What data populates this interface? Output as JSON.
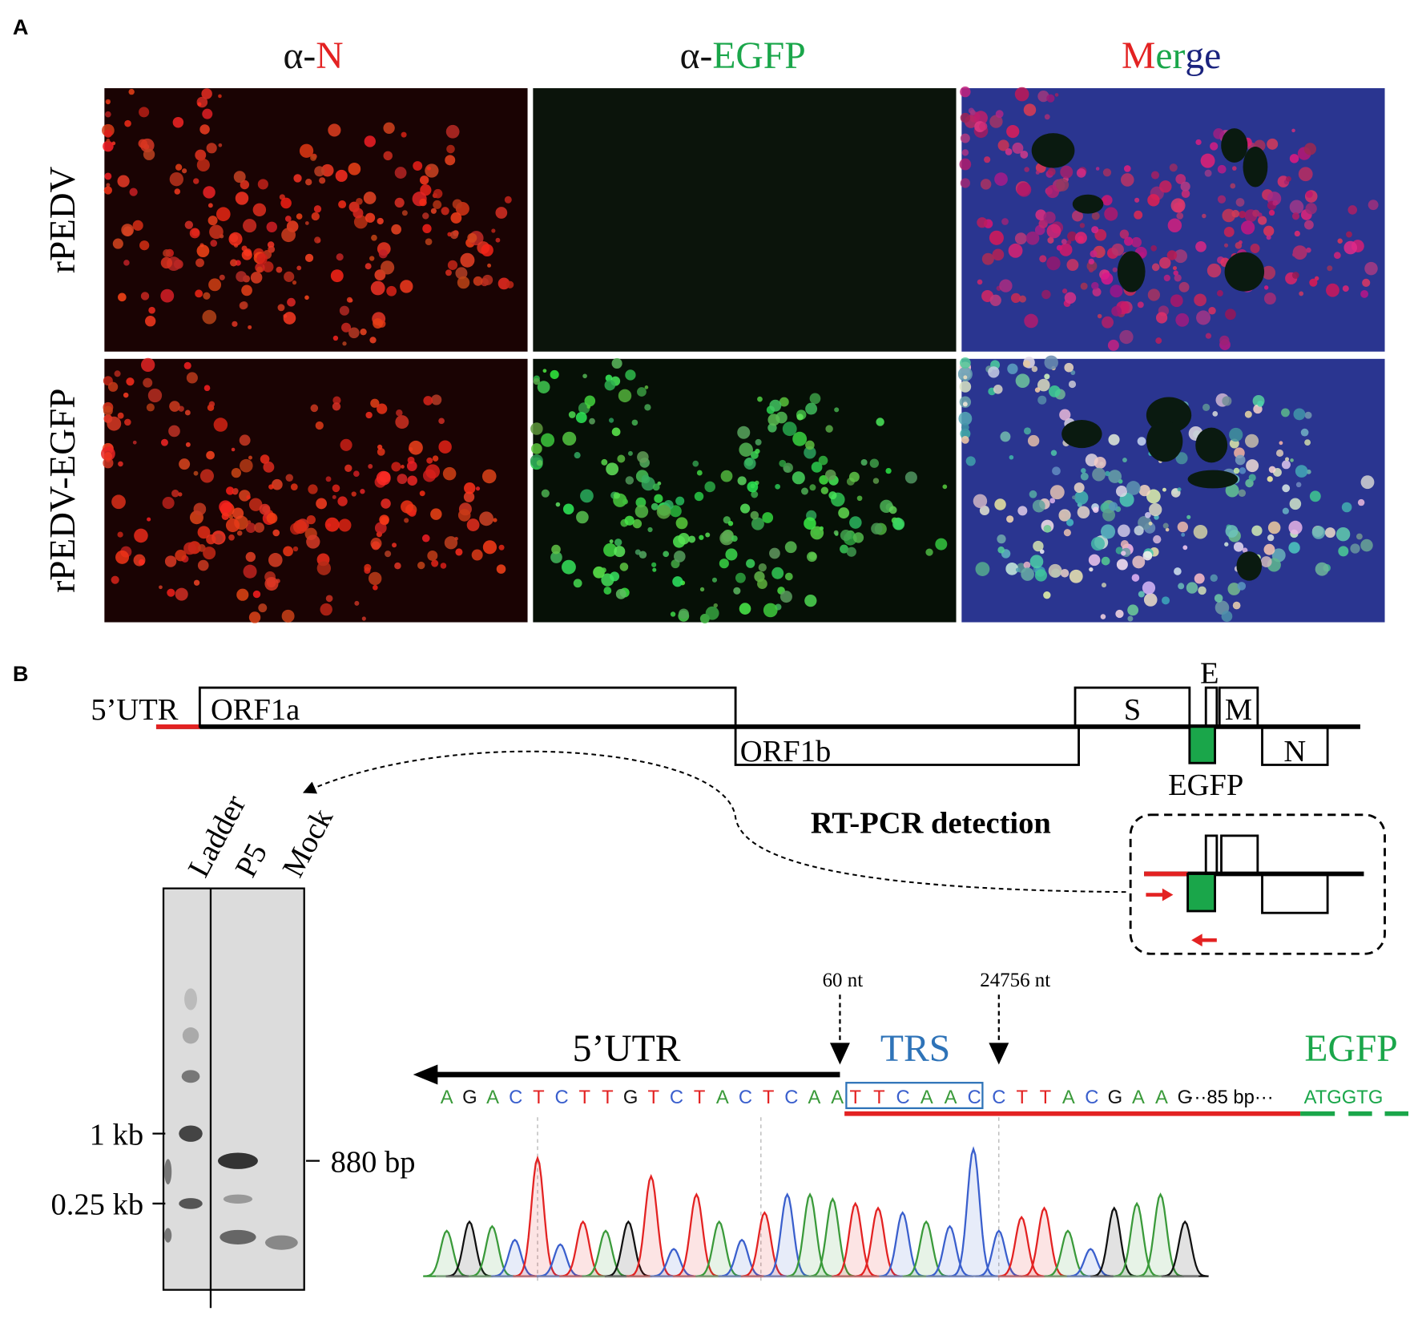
{
  "panel_a": {
    "label": "A",
    "headers": [
      [
        "α-",
        "N"
      ],
      [
        "α-",
        "EGFP"
      ],
      [
        "M",
        "er",
        "ge"
      ]
    ],
    "rows": [
      "rPEDV",
      "rPEDV-EGFP"
    ]
  },
  "panel_b": {
    "label": "B",
    "genome": {
      "utr": "5’UTR",
      "orf1a": "ORF1a",
      "orf1b": "ORF1b",
      "s": "S",
      "e": "E",
      "m": "M",
      "n": "N",
      "egfp": "EGFP"
    },
    "detection": "RT-PCR detection",
    "gel": {
      "lanes": [
        "Ladder",
        "P5",
        "Mock"
      ],
      "markers": [
        "1 kb",
        "0.25 kb"
      ],
      "band": "880 bp"
    },
    "sequence": {
      "pos1": "60 nt",
      "pos2": "24756 nt",
      "utr": "5’UTR",
      "trs": "TRS",
      "egfp": "EGFP",
      "utr_bases": [
        "A",
        "G",
        "A",
        "C",
        "T",
        "C",
        "T",
        "T",
        "G",
        "T",
        "C",
        "T",
        "A",
        "C",
        "T",
        "C",
        "A",
        "A"
      ],
      "trs_bases": [
        "T",
        "T",
        "C",
        "A",
        "A",
        "C"
      ],
      "post_bases": [
        "C",
        "T",
        "T",
        "A",
        "C",
        "G",
        "A",
        "A",
        "G"
      ],
      "gap": "···85 bp···",
      "start": "ATGGTG"
    }
  }
}
